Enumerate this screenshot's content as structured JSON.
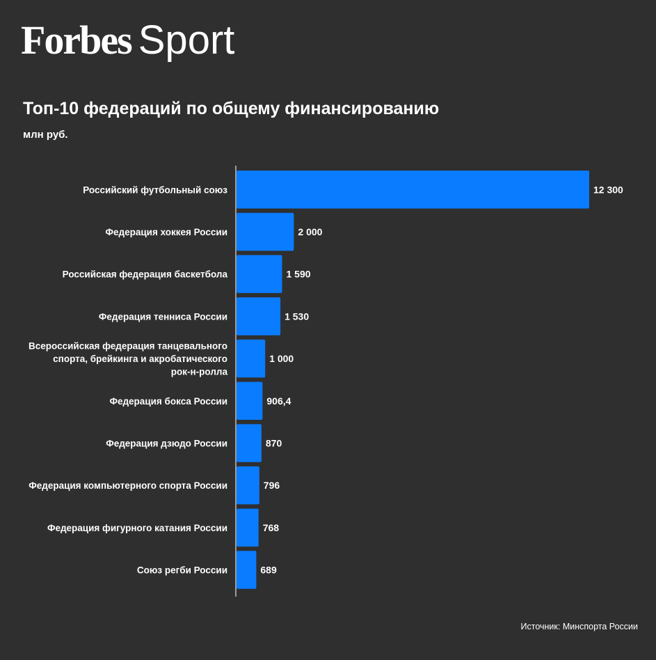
{
  "logo": {
    "brand": "Forbes",
    "section": "Sport"
  },
  "chart_data": {
    "type": "bar",
    "orientation": "horizontal",
    "title": "Топ-10 федераций по общему финансированию",
    "unit": "млн руб.",
    "bar_color": "#0a7cff",
    "categories": [
      [
        "Российский футбольный союз"
      ],
      [
        "Федерация хоккея России"
      ],
      [
        "Российская федерация баскетбола"
      ],
      [
        "Федерация тенниса России"
      ],
      [
        "Всероссийская федерация танцевального",
        "спорта, брейкинга и акробатического",
        "рок-н-ролла"
      ],
      [
        "Федерация бокса России"
      ],
      [
        "Федерация дзюдо России"
      ],
      [
        "Федерация компьютерного спорта России"
      ],
      [
        "Федерация фигурного катания России"
      ],
      [
        "Союз регби России"
      ]
    ],
    "values": [
      12300,
      2000,
      1590,
      1530,
      1000,
      906.4,
      870,
      796,
      768,
      689
    ],
    "value_labels": [
      "12 300",
      "2 000",
      "1 590",
      "1 530",
      "1 000",
      "906,4",
      "870",
      "796",
      "768",
      "689"
    ],
    "xlim": [
      0,
      12300
    ]
  },
  "source": "Источник: Минспорта России"
}
